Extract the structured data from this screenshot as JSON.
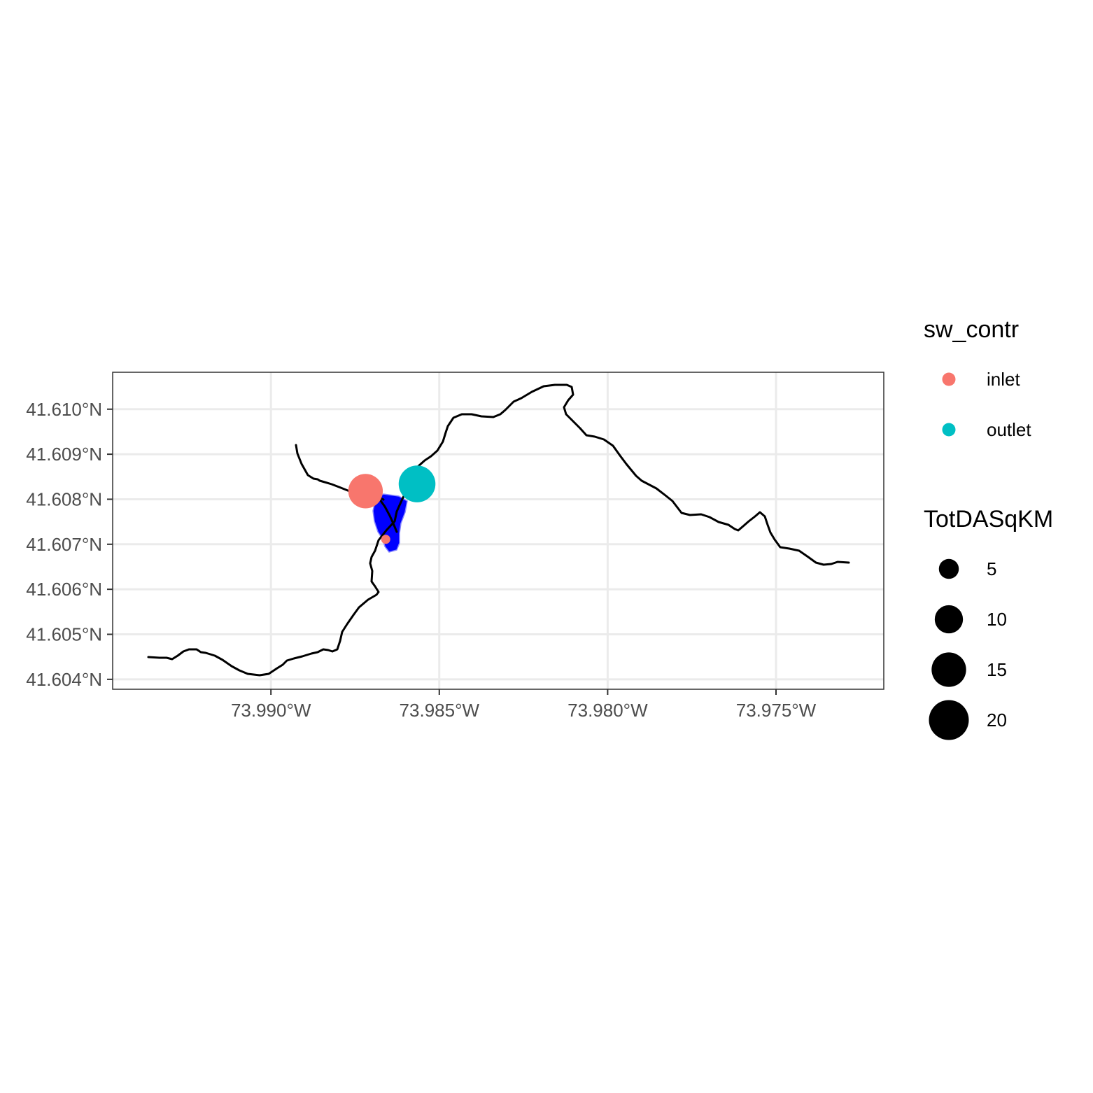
{
  "map": {
    "x_ticks": [
      "73.990°W",
      "73.985°W",
      "73.980°W",
      "73.975°W"
    ],
    "y_ticks": [
      "41.610°N",
      "41.609°N",
      "41.608°N",
      "41.607°N",
      "41.606°N",
      "41.605°N",
      "41.604°N"
    ],
    "x_tick_values": [
      -73.99,
      -73.985,
      -73.98,
      -73.975
    ],
    "y_tick_values": [
      41.61,
      41.609,
      41.608,
      41.607,
      41.606,
      41.605,
      41.604
    ],
    "xlim": [
      -73.9947,
      -73.9718
    ],
    "ylim": [
      41.60378,
      41.61082
    ],
    "catchment_fill": "#0000ff",
    "flowline_color": "#000000",
    "points": [
      {
        "sw_contr": "inlet",
        "lon": -73.98719,
        "lat": 41.60818,
        "TotDASqKM": 15
      },
      {
        "sw_contr": "outlet",
        "lon": -73.98566,
        "lat": 41.60834,
        "TotDASqKM": 17
      },
      {
        "sw_contr": "inlet",
        "lon": -73.98659,
        "lat": 41.60711,
        "TotDASqKM": 1
      }
    ]
  },
  "legend": {
    "color": {
      "title": "sw_contr",
      "items": [
        {
          "label": "inlet",
          "color": "#f8766d"
        },
        {
          "label": "outlet",
          "color": "#00bfc4"
        }
      ]
    },
    "size": {
      "title": "TotDASqKM",
      "items": [
        {
          "label": "5",
          "value": 5
        },
        {
          "label": "10",
          "value": 10
        },
        {
          "label": "15",
          "value": 15
        },
        {
          "label": "20",
          "value": 20
        }
      ]
    }
  }
}
